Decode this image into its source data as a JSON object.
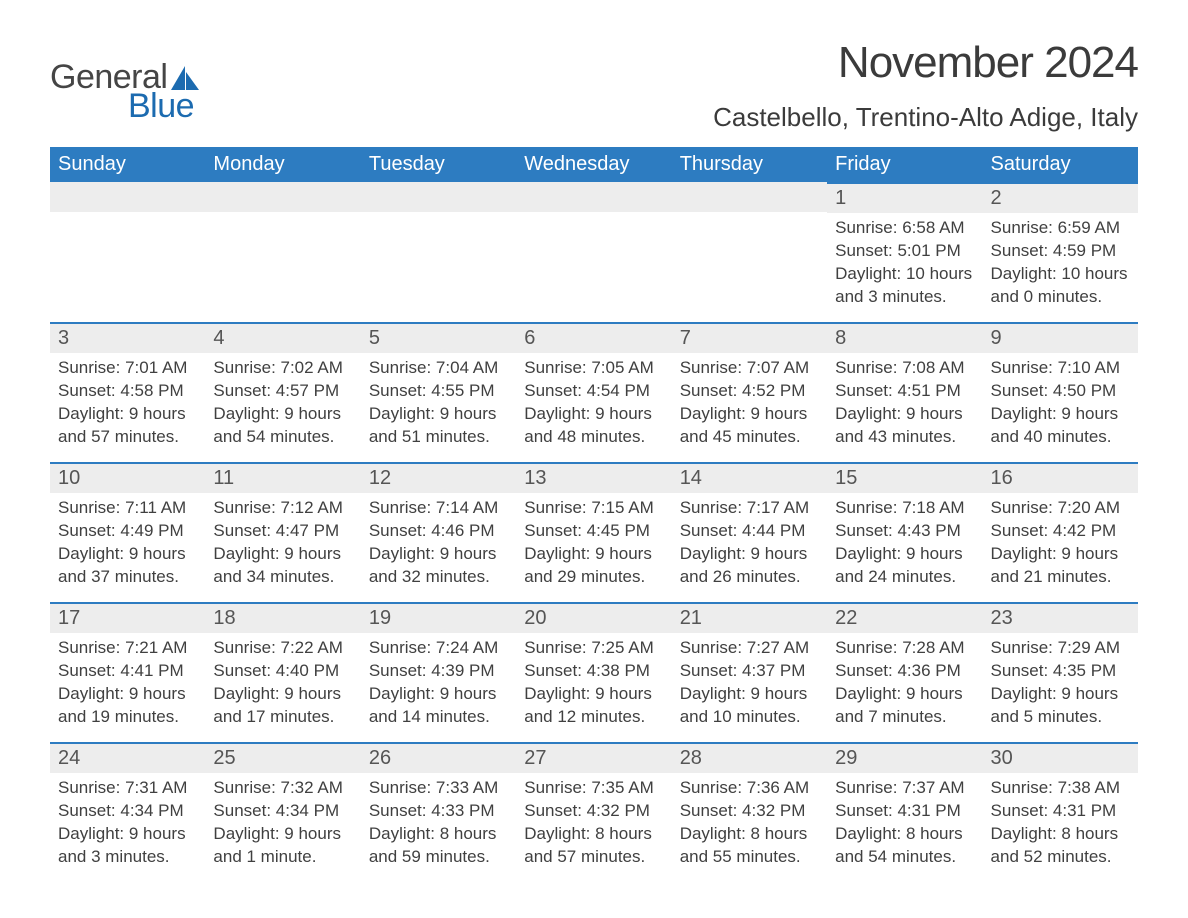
{
  "logo": {
    "general": "General",
    "blue": "Blue"
  },
  "title": "November 2024",
  "subtitle": "Castelbello, Trentino-Alto Adige, Italy",
  "columns": [
    "Sunday",
    "Monday",
    "Tuesday",
    "Wednesday",
    "Thursday",
    "Friday",
    "Saturday"
  ],
  "colors": {
    "header_bg": "#2d7cc1",
    "header_text": "#ffffff",
    "daybar_bg": "#ededed",
    "daybar_border": "#2d7cc1",
    "text": "#404040",
    "logo_blue": "#1c6bb0",
    "logo_gray": "#454545"
  },
  "weeks": [
    [
      null,
      null,
      null,
      null,
      null,
      {
        "n": "1",
        "sr": "Sunrise: 6:58 AM",
        "ss": "Sunset: 5:01 PM",
        "dl": "Daylight: 10 hours and 3 minutes."
      },
      {
        "n": "2",
        "sr": "Sunrise: 6:59 AM",
        "ss": "Sunset: 4:59 PM",
        "dl": "Daylight: 10 hours and 0 minutes."
      }
    ],
    [
      {
        "n": "3",
        "sr": "Sunrise: 7:01 AM",
        "ss": "Sunset: 4:58 PM",
        "dl": "Daylight: 9 hours and 57 minutes."
      },
      {
        "n": "4",
        "sr": "Sunrise: 7:02 AM",
        "ss": "Sunset: 4:57 PM",
        "dl": "Daylight: 9 hours and 54 minutes."
      },
      {
        "n": "5",
        "sr": "Sunrise: 7:04 AM",
        "ss": "Sunset: 4:55 PM",
        "dl": "Daylight: 9 hours and 51 minutes."
      },
      {
        "n": "6",
        "sr": "Sunrise: 7:05 AM",
        "ss": "Sunset: 4:54 PM",
        "dl": "Daylight: 9 hours and 48 minutes."
      },
      {
        "n": "7",
        "sr": "Sunrise: 7:07 AM",
        "ss": "Sunset: 4:52 PM",
        "dl": "Daylight: 9 hours and 45 minutes."
      },
      {
        "n": "8",
        "sr": "Sunrise: 7:08 AM",
        "ss": "Sunset: 4:51 PM",
        "dl": "Daylight: 9 hours and 43 minutes."
      },
      {
        "n": "9",
        "sr": "Sunrise: 7:10 AM",
        "ss": "Sunset: 4:50 PM",
        "dl": "Daylight: 9 hours and 40 minutes."
      }
    ],
    [
      {
        "n": "10",
        "sr": "Sunrise: 7:11 AM",
        "ss": "Sunset: 4:49 PM",
        "dl": "Daylight: 9 hours and 37 minutes."
      },
      {
        "n": "11",
        "sr": "Sunrise: 7:12 AM",
        "ss": "Sunset: 4:47 PM",
        "dl": "Daylight: 9 hours and 34 minutes."
      },
      {
        "n": "12",
        "sr": "Sunrise: 7:14 AM",
        "ss": "Sunset: 4:46 PM",
        "dl": "Daylight: 9 hours and 32 minutes."
      },
      {
        "n": "13",
        "sr": "Sunrise: 7:15 AM",
        "ss": "Sunset: 4:45 PM",
        "dl": "Daylight: 9 hours and 29 minutes."
      },
      {
        "n": "14",
        "sr": "Sunrise: 7:17 AM",
        "ss": "Sunset: 4:44 PM",
        "dl": "Daylight: 9 hours and 26 minutes."
      },
      {
        "n": "15",
        "sr": "Sunrise: 7:18 AM",
        "ss": "Sunset: 4:43 PM",
        "dl": "Daylight: 9 hours and 24 minutes."
      },
      {
        "n": "16",
        "sr": "Sunrise: 7:20 AM",
        "ss": "Sunset: 4:42 PM",
        "dl": "Daylight: 9 hours and 21 minutes."
      }
    ],
    [
      {
        "n": "17",
        "sr": "Sunrise: 7:21 AM",
        "ss": "Sunset: 4:41 PM",
        "dl": "Daylight: 9 hours and 19 minutes."
      },
      {
        "n": "18",
        "sr": "Sunrise: 7:22 AM",
        "ss": "Sunset: 4:40 PM",
        "dl": "Daylight: 9 hours and 17 minutes."
      },
      {
        "n": "19",
        "sr": "Sunrise: 7:24 AM",
        "ss": "Sunset: 4:39 PM",
        "dl": "Daylight: 9 hours and 14 minutes."
      },
      {
        "n": "20",
        "sr": "Sunrise: 7:25 AM",
        "ss": "Sunset: 4:38 PM",
        "dl": "Daylight: 9 hours and 12 minutes."
      },
      {
        "n": "21",
        "sr": "Sunrise: 7:27 AM",
        "ss": "Sunset: 4:37 PM",
        "dl": "Daylight: 9 hours and 10 minutes."
      },
      {
        "n": "22",
        "sr": "Sunrise: 7:28 AM",
        "ss": "Sunset: 4:36 PM",
        "dl": "Daylight: 9 hours and 7 minutes."
      },
      {
        "n": "23",
        "sr": "Sunrise: 7:29 AM",
        "ss": "Sunset: 4:35 PM",
        "dl": "Daylight: 9 hours and 5 minutes."
      }
    ],
    [
      {
        "n": "24",
        "sr": "Sunrise: 7:31 AM",
        "ss": "Sunset: 4:34 PM",
        "dl": "Daylight: 9 hours and 3 minutes."
      },
      {
        "n": "25",
        "sr": "Sunrise: 7:32 AM",
        "ss": "Sunset: 4:34 PM",
        "dl": "Daylight: 9 hours and 1 minute."
      },
      {
        "n": "26",
        "sr": "Sunrise: 7:33 AM",
        "ss": "Sunset: 4:33 PM",
        "dl": "Daylight: 8 hours and 59 minutes."
      },
      {
        "n": "27",
        "sr": "Sunrise: 7:35 AM",
        "ss": "Sunset: 4:32 PM",
        "dl": "Daylight: 8 hours and 57 minutes."
      },
      {
        "n": "28",
        "sr": "Sunrise: 7:36 AM",
        "ss": "Sunset: 4:32 PM",
        "dl": "Daylight: 8 hours and 55 minutes."
      },
      {
        "n": "29",
        "sr": "Sunrise: 7:37 AM",
        "ss": "Sunset: 4:31 PM",
        "dl": "Daylight: 8 hours and 54 minutes."
      },
      {
        "n": "30",
        "sr": "Sunrise: 7:38 AM",
        "ss": "Sunset: 4:31 PM",
        "dl": "Daylight: 8 hours and 52 minutes."
      }
    ]
  ]
}
